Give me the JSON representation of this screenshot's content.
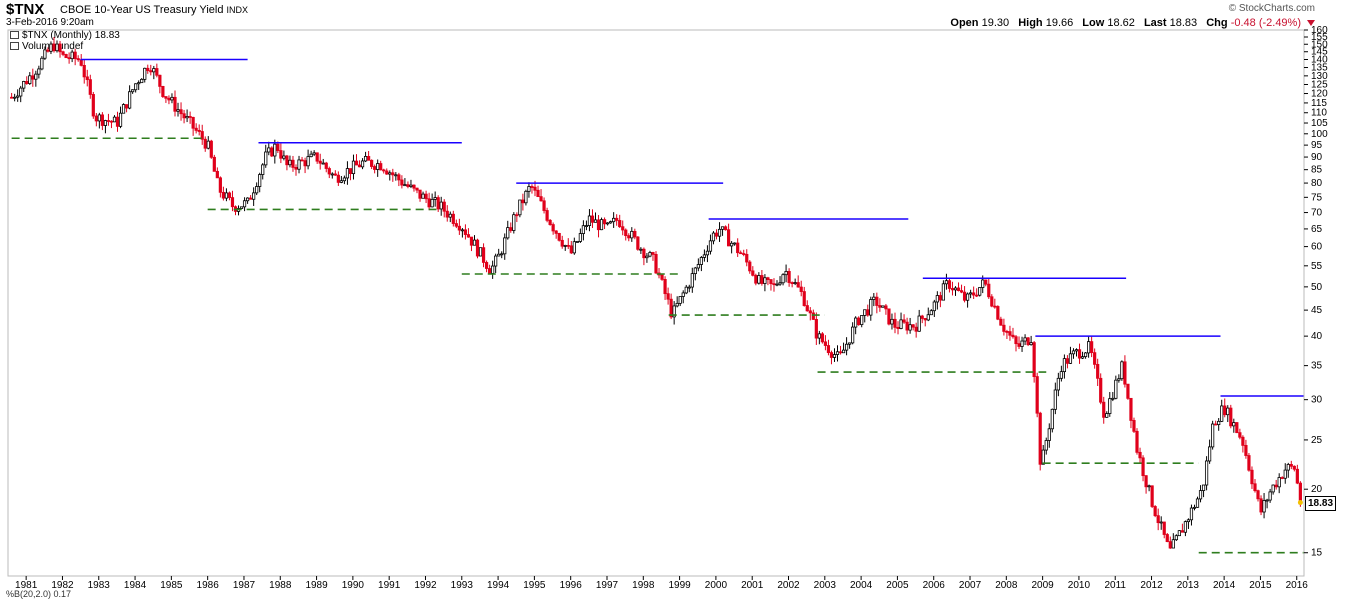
{
  "header": {
    "ticker": "$TNX",
    "description": "CBOE 10-Year US Treasury Yield",
    "exchange": "INDX",
    "datetime": "3-Feb-2016 9:20am",
    "brand": "© StockCharts.com",
    "quote": {
      "open_label": "Open",
      "open": "19.30",
      "high_label": "High",
      "high": "19.66",
      "low_label": "Low",
      "low": "18.62",
      "last_label": "Last",
      "last": "18.83",
      "chg_label": "Chg",
      "chg": "-0.48 (-2.49%)"
    }
  },
  "legend": {
    "price_label": "$TNX (Monthly) 18.83",
    "volume_label": "Volume undef"
  },
  "lower_panel_label": "%B(20,2.0) 0.17",
  "last_value_box": "18.83",
  "colors": {
    "up": "#000000",
    "down": "#e0001b",
    "resistance": "#1a00ff",
    "support": "#2e7d1e",
    "last_marker": "#f2c200"
  },
  "chart_data": {
    "type": "candlestick",
    "title": "$TNX CBOE 10-Year US Treasury Yield",
    "interval": "Monthly",
    "y_scale": "log",
    "ylim": [
      13.5,
      160
    ],
    "xlim": [
      1980.5,
      2016.2
    ],
    "y_ticks": [
      15,
      20,
      25,
      30,
      35,
      40,
      45,
      50,
      55,
      60,
      65,
      70,
      75,
      80,
      85,
      90,
      95,
      100,
      105,
      110,
      115,
      120,
      125,
      130,
      135,
      140,
      145,
      150,
      155,
      160
    ],
    "y_tick_labels": [
      "15",
      "20",
      "25",
      "30",
      "35",
      "40",
      "45",
      "50",
      "55",
      "60",
      "65",
      "70",
      "75",
      "80",
      "85",
      "90",
      "95",
      "100",
      "105",
      "110",
      "115",
      "120",
      "125",
      "130",
      "135",
      "140",
      "145",
      "150",
      "155",
      "160"
    ],
    "x_ticks": [
      1981,
      1982,
      1983,
      1984,
      1985,
      1986,
      1987,
      1988,
      1989,
      1990,
      1991,
      1992,
      1993,
      1994,
      1995,
      1996,
      1997,
      1998,
      1999,
      2000,
      2001,
      2002,
      2003,
      2004,
      2005,
      2006,
      2007,
      2008,
      2009,
      2010,
      2011,
      2012,
      2013,
      2014,
      2015,
      2016
    ],
    "x_tick_labels": [
      "1981",
      "1982",
      "1983",
      "1984",
      "1985",
      "1986",
      "1987",
      "1988",
      "1989",
      "1990",
      "1991",
      "1992",
      "1993",
      "1994",
      "1995",
      "1996",
      "1997",
      "1998",
      "1999",
      "2000",
      "2001",
      "2002",
      "2003",
      "2004",
      "2005",
      "2006",
      "2007",
      "2008",
      "2009",
      "2010",
      "2011",
      "2012",
      "2013",
      "2014",
      "2015",
      "2016"
    ],
    "close_path": [
      [
        1980.6,
        118
      ],
      [
        1981.2,
        132
      ],
      [
        1981.75,
        150
      ],
      [
        1982.0,
        142
      ],
      [
        1982.5,
        140
      ],
      [
        1982.9,
        108
      ],
      [
        1983.5,
        105
      ],
      [
        1984.0,
        125
      ],
      [
        1984.4,
        138
      ],
      [
        1984.8,
        120
      ],
      [
        1985.5,
        105
      ],
      [
        1986.0,
        95
      ],
      [
        1986.3,
        78
      ],
      [
        1986.7,
        72
      ],
      [
        1987.1,
        73
      ],
      [
        1987.6,
        90
      ],
      [
        1987.9,
        95
      ],
      [
        1988.2,
        86
      ],
      [
        1989.0,
        90
      ],
      [
        1989.5,
        82
      ],
      [
        1990.3,
        88
      ],
      [
        1990.8,
        87
      ],
      [
        1991.2,
        82
      ],
      [
        1991.8,
        76
      ],
      [
        1992.4,
        72
      ],
      [
        1993.0,
        66
      ],
      [
        1993.8,
        54
      ],
      [
        1994.0,
        57
      ],
      [
        1994.5,
        70
      ],
      [
        1994.9,
        79
      ],
      [
        1995.5,
        66
      ],
      [
        1996.0,
        58
      ],
      [
        1996.5,
        68
      ],
      [
        1997.0,
        65
      ],
      [
        1997.3,
        68
      ],
      [
        1997.9,
        60
      ],
      [
        1998.3,
        56
      ],
      [
        1998.8,
        44
      ],
      [
        1999.5,
        55
      ],
      [
        1999.9,
        63
      ],
      [
        2000.1,
        65
      ],
      [
        2000.7,
        58
      ],
      [
        2001.2,
        51
      ],
      [
        2001.6,
        50
      ],
      [
        2001.9,
        54
      ],
      [
        2002.4,
        48
      ],
      [
        2002.8,
        40
      ],
      [
        2003.4,
        36
      ],
      [
        2003.9,
        43
      ],
      [
        2004.4,
        47
      ],
      [
        2004.9,
        42
      ],
      [
        2005.5,
        42
      ],
      [
        2006.0,
        46
      ],
      [
        2006.4,
        51
      ],
      [
        2006.9,
        47
      ],
      [
        2007.4,
        51
      ],
      [
        2007.9,
        42
      ],
      [
        2008.3,
        38
      ],
      [
        2008.7,
        40
      ],
      [
        2008.95,
        22
      ],
      [
        2009.5,
        35
      ],
      [
        2009.9,
        37
      ],
      [
        2010.3,
        38
      ],
      [
        2010.7,
        28
      ],
      [
        2011.2,
        35
      ],
      [
        2011.6,
        24
      ],
      [
        2012.0,
        19
      ],
      [
        2012.5,
        15
      ],
      [
        2012.9,
        17
      ],
      [
        2013.4,
        20
      ],
      [
        2013.7,
        27
      ],
      [
        2014.0,
        29
      ],
      [
        2014.5,
        25
      ],
      [
        2015.0,
        18
      ],
      [
        2015.3,
        20
      ],
      [
        2015.7,
        22
      ],
      [
        2015.95,
        22
      ],
      [
        2016.1,
        18.83
      ]
    ],
    "resistance_lines": [
      {
        "x": [
          1982.5,
          1987.1
        ],
        "y": 140
      },
      {
        "x": [
          1987.4,
          1993.0
        ],
        "y": 96
      },
      {
        "x": [
          1994.5,
          2000.2
        ],
        "y": 80
      },
      {
        "x": [
          1999.8,
          2005.3
        ],
        "y": 68
      },
      {
        "x": [
          2005.7,
          2011.3
        ],
        "y": 52
      },
      {
        "x": [
          2008.8,
          2013.9
        ],
        "y": 40
      },
      {
        "x": [
          2013.9,
          2016.2
        ],
        "y": 30.5
      }
    ],
    "support_lines": [
      {
        "x": [
          1980.6,
          1985.9
        ],
        "y": 98
      },
      {
        "x": [
          1986.0,
          1992.3
        ],
        "y": 71
      },
      {
        "x": [
          1993.0,
          1999.0
        ],
        "y": 53
      },
      {
        "x": [
          1998.7,
          2003.0
        ],
        "y": 44
      },
      {
        "x": [
          2002.8,
          2009.1
        ],
        "y": 34
      },
      {
        "x": [
          2009.0,
          2013.3
        ],
        "y": 22.5
      },
      {
        "x": [
          2013.3,
          2016.2
        ],
        "y": 15
      }
    ]
  }
}
